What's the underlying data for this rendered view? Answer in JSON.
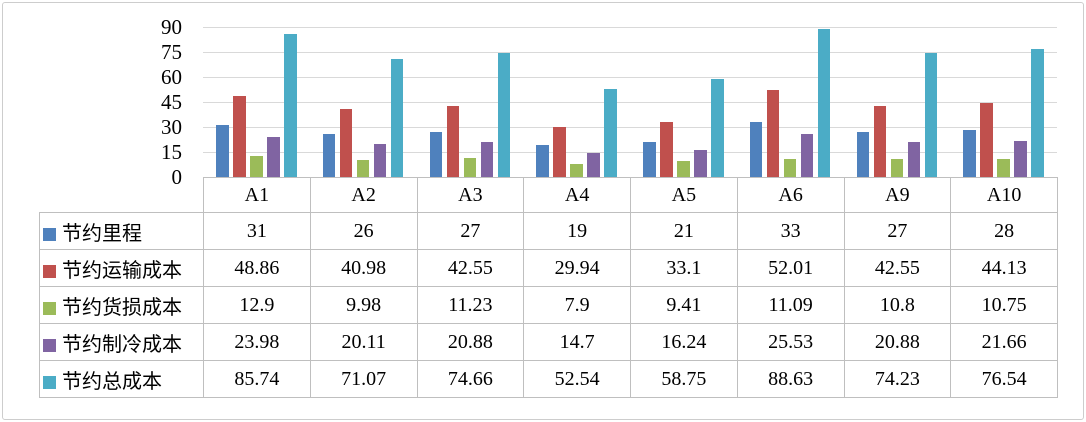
{
  "chart_data": {
    "type": "bar",
    "title": "",
    "xlabel": "",
    "ylabel": "",
    "grid": true,
    "legend_position": "table-left",
    "ylim": [
      0,
      90
    ],
    "yticks": [
      0,
      15,
      30,
      45,
      60,
      75,
      90
    ],
    "categories": [
      "A1",
      "A2",
      "A3",
      "A4",
      "A5",
      "A6",
      "A9",
      "A10"
    ],
    "series": [
      {
        "name": "节约里程",
        "color": "#4F81BD",
        "values": [
          31,
          26,
          27,
          19,
          21,
          33,
          27,
          28
        ]
      },
      {
        "name": "节约运输成本",
        "color": "#C0504D",
        "values": [
          48.86,
          40.98,
          42.55,
          29.94,
          33.1,
          52.01,
          42.55,
          44.13
        ]
      },
      {
        "name": "节约货损成本",
        "color": "#9BBB59",
        "values": [
          12.9,
          9.98,
          11.23,
          7.9,
          9.41,
          11.09,
          10.8,
          10.75
        ]
      },
      {
        "name": "节约制冷成本",
        "color": "#8064A2",
        "values": [
          23.98,
          20.11,
          20.88,
          14.7,
          16.24,
          25.53,
          20.88,
          21.66
        ]
      },
      {
        "name": "节约总成本",
        "color": "#4BACC6",
        "values": [
          85.74,
          71.07,
          74.66,
          52.54,
          58.75,
          88.63,
          74.23,
          76.54
        ]
      }
    ],
    "colors": {
      "gridline": "#d9d9d9",
      "table_border": "#bfbfbf",
      "frame_border": "#cdcdcd",
      "text": "#000000"
    }
  }
}
